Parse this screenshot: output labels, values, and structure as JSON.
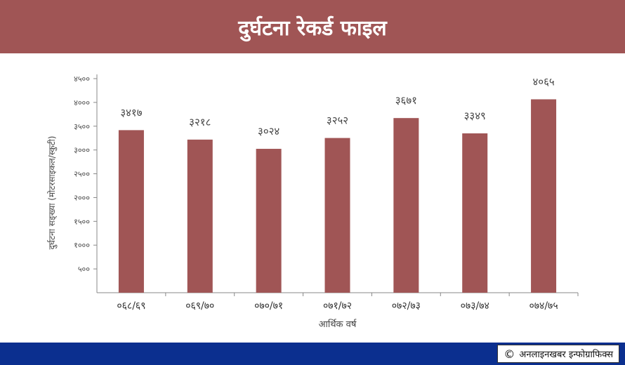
{
  "header": {
    "title": "दुर्घटना रेकर्ड फाइल"
  },
  "footer": {
    "copyright_symbol": "©",
    "credit_text": "अनलाइनखबर इन्फोग्राफिक्स"
  },
  "colors": {
    "header_bg": "#a05555",
    "bar": "#a05555",
    "footer_bg": "#0b2f8f"
  },
  "chart_data": {
    "type": "bar",
    "title": "",
    "xlabel": "आर्थिक वर्ष",
    "ylabel": "दुर्घटना सङ्ख्या (मोटरसाइकल/स्कुटी)",
    "categories": [
      "०६८/६९",
      "०६९/७०",
      "०७०/७१",
      "०७१/७२",
      "०७२/७३",
      "०७३/७४",
      "०७४/७५"
    ],
    "values": [
      3417,
      3218,
      3024,
      3252,
      3671,
      3349,
      4065
    ],
    "value_labels": [
      "३४१७",
      "३२१८",
      "३०२४",
      "३२५२",
      "३६७१",
      "३३४९",
      "४०६५"
    ],
    "ylim": [
      0,
      4500
    ],
    "yticks": [
      500,
      1000,
      1500,
      2000,
      2500,
      3000,
      3500,
      4000,
      4500
    ],
    "ytick_labels": [
      "५००",
      "१०००",
      "१५००",
      "२०००",
      "२५००",
      "३०००",
      "३५००",
      "४०००",
      "४५००"
    ],
    "grid": false,
    "legend": "none"
  }
}
